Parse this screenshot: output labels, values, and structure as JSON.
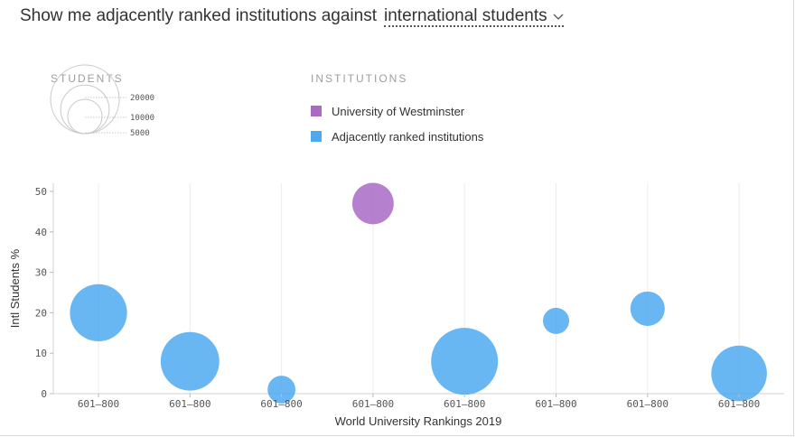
{
  "headline": {
    "prompt": "Show me adjacently ranked institutions against",
    "selected_metric": "international students",
    "chevron_icon": "chevron-down-icon"
  },
  "legend": {
    "students_title": "STUDENTS",
    "size_levels": [
      {
        "label": "20000",
        "value": 20000
      },
      {
        "label": "10000",
        "value": 10000
      },
      {
        "label": "5000",
        "value": 5000
      }
    ],
    "institutions_title": "INSTITUTIONS",
    "items": [
      {
        "label": "University of Westminster",
        "color": "#a86ac4"
      },
      {
        "label": "Adjacently ranked institutions",
        "color": "#4ea9f0"
      }
    ]
  },
  "chart_data": {
    "type": "scatter",
    "title": "",
    "xlabel": "World University Rankings 2019",
    "ylabel": "Intl Students %",
    "ylim": [
      0,
      52
    ],
    "yticks": [
      0,
      10,
      20,
      30,
      40,
      50
    ],
    "categories": [
      "601–800",
      "601–800",
      "601–800",
      "601–800",
      "601–800",
      "601–800",
      "601–800",
      "601–800"
    ],
    "grid": "vertical",
    "legend_placement": "top",
    "series": [
      {
        "name": "Adjacently ranked institutions",
        "color": "#4ea9f0",
        "points": [
          {
            "x": 0,
            "y": 20,
            "students": 19000
          },
          {
            "x": 1,
            "y": 8,
            "students": 20000
          },
          {
            "x": 2,
            "y": 1,
            "students": 4500
          },
          {
            "x": 4,
            "y": 8,
            "students": 26000
          },
          {
            "x": 5,
            "y": 18,
            "students": 4000
          },
          {
            "x": 6,
            "y": 21,
            "students": 6900
          },
          {
            "x": 7,
            "y": 5,
            "students": 18000
          }
        ]
      },
      {
        "name": "University of Westminster",
        "color": "#a86ac4",
        "points": [
          {
            "x": 3,
            "y": 47,
            "students": 10000
          }
        ]
      }
    ]
  }
}
